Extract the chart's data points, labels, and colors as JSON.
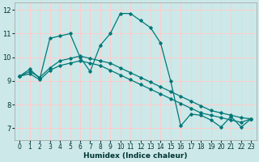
{
  "title": "",
  "xlabel": "Humidex (Indice chaleur)",
  "bg_color": "#cce8e8",
  "grid_color": "#ffcccc",
  "line_color": "#007777",
  "xlim": [
    -0.5,
    23.5
  ],
  "ylim": [
    6.5,
    12.3
  ],
  "xticks": [
    0,
    1,
    2,
    3,
    4,
    5,
    6,
    7,
    8,
    9,
    10,
    11,
    12,
    13,
    14,
    15,
    16,
    17,
    18,
    19,
    20,
    21,
    22,
    23
  ],
  "yticks": [
    7,
    8,
    9,
    10,
    11,
    12
  ],
  "series": [
    {
      "x": [
        0,
        1,
        2,
        3,
        4,
        5,
        6,
        7,
        8,
        9,
        10,
        11,
        12,
        13,
        14,
        15,
        16,
        17,
        18,
        19,
        20,
        21,
        22,
        23
      ],
      "y": [
        9.2,
        9.5,
        9.1,
        10.8,
        10.9,
        11.0,
        10.0,
        9.4,
        10.5,
        11.0,
        11.85,
        11.85,
        11.55,
        11.25,
        10.6,
        9.0,
        7.1,
        7.6,
        7.55,
        7.35,
        7.05,
        7.5,
        7.05,
        7.4
      ]
    },
    {
      "x": [
        0,
        1,
        2,
        3,
        4,
        5,
        6,
        7,
        8,
        9,
        10,
        11,
        12,
        13,
        14,
        15,
        16,
        17,
        18,
        19,
        20,
        21,
        22,
        23
      ],
      "y": [
        9.2,
        9.4,
        9.15,
        9.55,
        9.85,
        9.95,
        10.05,
        9.95,
        9.85,
        9.75,
        9.55,
        9.35,
        9.15,
        8.95,
        8.75,
        8.55,
        8.35,
        8.15,
        7.95,
        7.75,
        7.65,
        7.55,
        7.45,
        7.4
      ]
    },
    {
      "x": [
        0,
        1,
        2,
        3,
        4,
        5,
        6,
        7,
        8,
        9,
        10,
        11,
        12,
        13,
        14,
        15,
        16,
        17,
        18,
        19,
        20,
        21,
        22,
        23
      ],
      "y": [
        9.2,
        9.3,
        9.05,
        9.45,
        9.65,
        9.75,
        9.85,
        9.75,
        9.65,
        9.45,
        9.25,
        9.05,
        8.85,
        8.65,
        8.45,
        8.25,
        8.05,
        7.85,
        7.65,
        7.55,
        7.45,
        7.35,
        7.25,
        7.4
      ]
    }
  ]
}
